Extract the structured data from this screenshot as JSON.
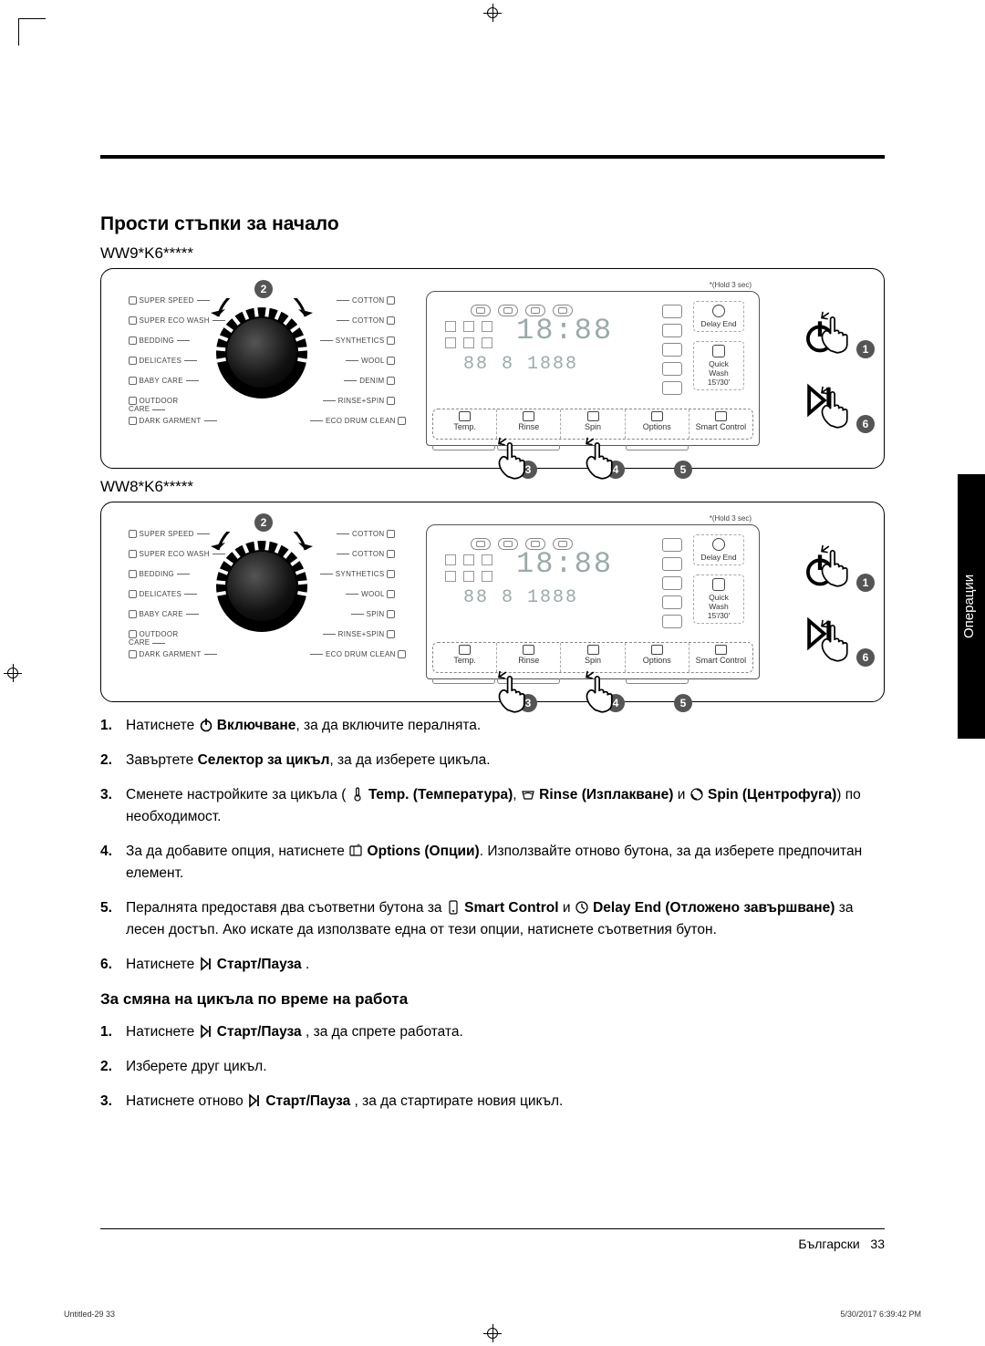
{
  "section_title": "Прости стъпки за начало",
  "models": {
    "a": "WW9*K6*****",
    "b": "WW8*K6*****"
  },
  "panel_common": {
    "hold_note": "*(Hold 3 sec)",
    "seg_time": "18:88",
    "seg_sub": "88  8   1888",
    "right_options": {
      "delay": {
        "label": "Delay End",
        "icon": "clock-icon"
      },
      "quick": {
        "label": "Quick\nWash\n15'/30'",
        "icon": "basin-icon"
      }
    },
    "bottom_buttons": [
      {
        "label": "Temp.",
        "icon": "thermometer-icon"
      },
      {
        "label": "Rinse",
        "icon": "basin-icon"
      },
      {
        "label": "Spin",
        "icon": "spin-icon"
      },
      {
        "label": "Options",
        "icon": "options-icon"
      },
      {
        "label": "Smart Control",
        "icon": "smart-control-icon"
      }
    ],
    "right_buttons": {
      "power_icon": "power-icon",
      "play_icon": "play-pause-icon"
    }
  },
  "panel_a": {
    "left_programs": [
      "SUPER SPEED",
      "SUPER ECO WASH",
      "BEDDING",
      "DELICATES",
      "BABY CARE",
      "OUTDOOR\nCARE",
      "DARK GARMENT"
    ],
    "right_programs": [
      "COTTON",
      "COTTON",
      "SYNTHETICS",
      "WOOL",
      "DENIM",
      "RINSE+SPIN",
      "ECO DRUM CLEAN"
    ]
  },
  "panel_b": {
    "left_programs": [
      "SUPER SPEED",
      "SUPER ECO WASH",
      "BEDDING",
      "DELICATES",
      "BABY CARE",
      "OUTDOOR\nCARE",
      "DARK GARMENT"
    ],
    "right_programs": [
      "COTTON",
      "COTTON",
      "SYNTHETICS",
      "WOOL",
      "SPIN",
      "RINSE+SPIN",
      "ECO DRUM CLEAN"
    ]
  },
  "callouts": {
    "c1": "1",
    "c2": "2",
    "c3": "3",
    "c4": "4",
    "c5": "5",
    "c6": "6"
  },
  "steps_main": [
    {
      "pre": "Натиснете ",
      "icon": "power-icon",
      "bold": " Включване",
      "post": ", за да включите пералнята."
    },
    {
      "pre": "Завъртете ",
      "bold": "Селектор за цикъл",
      "post": ", за да изберете цикъла."
    },
    {
      "pre": "Сменете настройките за цикъла ( ",
      "segments": [
        {
          "icon": "thermometer-icon",
          "bold": " Temp. (Температура)",
          "post": ", "
        },
        {
          "icon": "basin-icon",
          "bold": " Rinse (Изплакване)",
          "post": " и "
        },
        {
          "icon": "spin-icon",
          "bold": " Spin (Центрофуга)",
          "post": ") по необходимост."
        }
      ]
    },
    {
      "pre": "За да добавите опция, натиснете ",
      "icon": "options-icon",
      "bold": " Options (Опции)",
      "post": ". Използвайте отново бутона, за да изберете предпочитан елемент."
    },
    {
      "pre": "Пералнята предоставя два съответни бутона за ",
      "segments": [
        {
          "icon": "smart-control-icon",
          "bold": " Smart Control",
          "post": " и "
        },
        {
          "icon": "clock-icon",
          "bold": " Delay End (Отложено завършване)",
          "post": " за лесен достъп. Ако искате да използвате една от тези опции, натиснете съответния бутон."
        }
      ]
    },
    {
      "pre": "Натиснете ",
      "icon": "play-pause-icon",
      "bold": " Старт/Пауза ",
      "post": "."
    }
  ],
  "subhead": "За смяна на цикъла по време на работа",
  "steps_sub": [
    {
      "pre": "Натиснете ",
      "icon": "play-pause-icon",
      "bold": " Старт/Пауза ",
      "post": ", за да спрете работата."
    },
    {
      "pre": "Изберете друг цикъл."
    },
    {
      "pre": "Натиснете отново ",
      "icon": "play-pause-icon",
      "bold": " Старт/Пауза ",
      "post": ", за да стартирате новия цикъл."
    }
  ],
  "side_tab": "Операции",
  "footer": {
    "lang": "Български",
    "page": "33"
  },
  "print": {
    "left": "Untitled-29   33",
    "right": "5/30/2017   6:39:42 PM"
  },
  "colors": {
    "black": "#000000",
    "gray_line": "#666666",
    "seg": "#9aa",
    "callout_bg": "#555555"
  }
}
